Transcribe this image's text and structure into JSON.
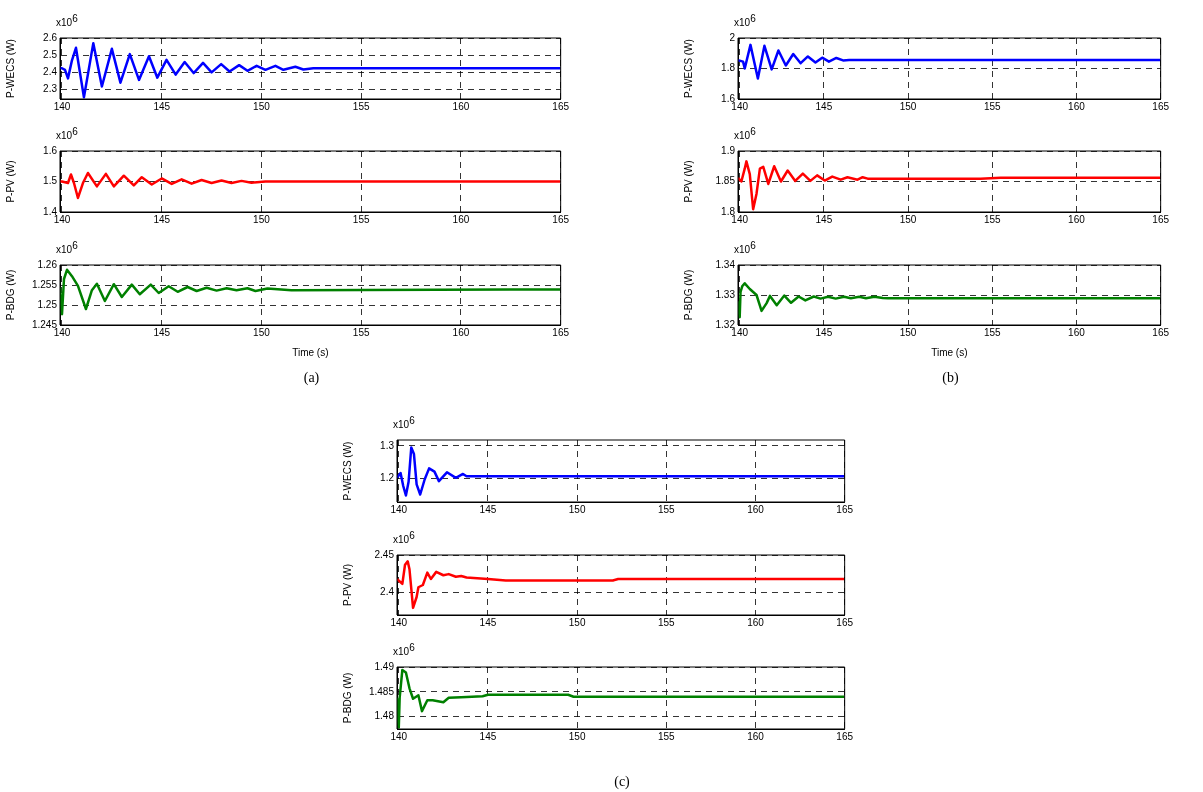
{
  "chart_data": [
    {
      "type": "line",
      "ylabel": "P-WECS (W)",
      "annotations": [
        "x10$^{6}$"
      ],
      "xlim": [
        139.9,
        165
      ],
      "xticks": [
        140,
        145,
        150,
        155,
        160,
        165
      ],
      "ylim": [
        2.245,
        2.6
      ],
      "yticks": [
        2.3,
        2.4,
        2.5,
        2.6
      ],
      "grid": true,
      "color": "#0000ff",
      "x": [
        139.9,
        140.0,
        140.15,
        140.3,
        140.5,
        140.7,
        141.1,
        141.57,
        142.0,
        142.5,
        142.93,
        143.4,
        143.86,
        144.36,
        144.78,
        145.24,
        145.7,
        146.15,
        146.6,
        147.07,
        147.5,
        147.98,
        148.4,
        148.88,
        149.3,
        149.76,
        150.2,
        150.7,
        151.1,
        151.7,
        152.1,
        152.6,
        165
      ],
      "values": [
        2.425,
        2.424,
        2.415,
        2.365,
        2.47,
        2.543,
        2.255,
        2.57,
        2.318,
        2.537,
        2.34,
        2.506,
        2.356,
        2.494,
        2.369,
        2.473,
        2.387,
        2.46,
        2.396,
        2.455,
        2.4,
        2.448,
        2.405,
        2.442,
        2.409,
        2.438,
        2.415,
        2.438,
        2.415,
        2.433,
        2.417,
        2.424,
        2.424
      ]
    },
    {
      "type": "line",
      "ylabel": "P-PV (W)",
      "annotations": [
        "x10$^{6}$"
      ],
      "xlim": [
        139.9,
        165
      ],
      "xticks": [
        140,
        145,
        150,
        155,
        160,
        165
      ],
      "ylim": [
        1.4,
        1.6
      ],
      "yticks": [
        1.4,
        1.5,
        1.6
      ],
      "grid": true,
      "color": "#ff0000",
      "x": [
        139.9,
        140.0,
        140.3,
        140.45,
        140.6,
        140.8,
        141.05,
        141.3,
        141.75,
        142.2,
        142.6,
        143.1,
        143.6,
        144.0,
        144.5,
        145.0,
        145.5,
        146.0,
        146.5,
        147.0,
        147.5,
        148.0,
        148.5,
        149.0,
        149.5,
        150.2,
        165
      ],
      "values": [
        1.5,
        1.5,
        1.495,
        1.523,
        1.495,
        1.446,
        1.495,
        1.528,
        1.484,
        1.525,
        1.484,
        1.519,
        1.487,
        1.514,
        1.49,
        1.51,
        1.492,
        1.507,
        1.493,
        1.505,
        1.495,
        1.503,
        1.495,
        1.502,
        1.496,
        1.5,
        1.5
      ]
    },
    {
      "type": "line",
      "ylabel": "P-BDG (W)",
      "xlabel": "Time (s)",
      "annotations": [
        "x10$^{6}$",
        "(a)"
      ],
      "xlim": [
        139.9,
        165
      ],
      "xticks": [
        140,
        145,
        150,
        155,
        160,
        165
      ],
      "ylim": [
        1.245,
        1.26
      ],
      "yticks": [
        1.245,
        1.25,
        1.255,
        1.26
      ],
      "grid": true,
      "color": "#008000",
      "x": [
        139.9,
        140.0,
        140.1,
        140.25,
        140.5,
        140.8,
        141.2,
        141.5,
        141.75,
        142.15,
        142.6,
        143.0,
        143.5,
        143.9,
        144.45,
        144.85,
        145.35,
        145.8,
        146.3,
        146.75,
        147.25,
        147.75,
        148.25,
        148.75,
        149.3,
        149.7,
        150.3,
        151.5,
        165
      ],
      "values": [
        1.2544,
        1.2477,
        1.2565,
        1.2588,
        1.2572,
        1.2548,
        1.249,
        1.2537,
        1.2553,
        1.251,
        1.2552,
        1.252,
        1.2551,
        1.2527,
        1.2551,
        1.253,
        1.2547,
        1.2533,
        1.2545,
        1.2535,
        1.2543,
        1.2536,
        1.2542,
        1.2537,
        1.2542,
        1.2535,
        1.2541,
        1.2537,
        1.2539
      ]
    },
    {
      "type": "line",
      "ylabel": "P-WECS (W)",
      "annotations": [
        "x10$^{6}$"
      ],
      "xlim": [
        139.9,
        165
      ],
      "xticks": [
        140,
        145,
        150,
        155,
        160,
        165
      ],
      "ylim": [
        1.6,
        2
      ],
      "yticks": [
        1.6,
        1.8,
        2
      ],
      "grid": true,
      "color": "#0000ff",
      "x": [
        139.9,
        140.2,
        140.3,
        140.64,
        141.08,
        141.47,
        141.9,
        142.3,
        142.74,
        143.18,
        143.62,
        144.05,
        144.5,
        144.9,
        145.3,
        145.74,
        146.14,
        146.5,
        165
      ],
      "values": [
        1.855,
        1.845,
        1.8,
        1.955,
        1.735,
        1.949,
        1.794,
        1.918,
        1.82,
        1.895,
        1.835,
        1.879,
        1.839,
        1.871,
        1.845,
        1.869,
        1.853,
        1.855,
        1.855
      ]
    },
    {
      "type": "line",
      "ylabel": "P-PV (W)",
      "annotations": [
        "x10$^{6}$"
      ],
      "xlim": [
        139.9,
        165
      ],
      "xticks": [
        140,
        145,
        150,
        155,
        160,
        165
      ],
      "ylim": [
        1.8,
        1.9
      ],
      "yticks": [
        1.8,
        1.85,
        1.9
      ],
      "grid": true,
      "color": "#ff0000",
      "x": [
        139.9,
        140.1,
        140.3,
        140.4,
        140.6,
        140.8,
        141.0,
        141.2,
        141.4,
        141.7,
        142.05,
        142.45,
        142.85,
        143.3,
        143.75,
        144.2,
        144.6,
        145.05,
        145.5,
        146.0,
        146.4,
        147.0,
        147.3,
        147.6,
        154.3,
        155.5,
        165
      ],
      "values": [
        1.856,
        1.85,
        1.871,
        1.883,
        1.862,
        1.8045,
        1.83,
        1.871,
        1.874,
        1.846,
        1.875,
        1.85,
        1.868,
        1.851,
        1.863,
        1.851,
        1.86,
        1.8515,
        1.858,
        1.853,
        1.857,
        1.853,
        1.857,
        1.8547,
        1.8547,
        1.856,
        1.856
      ]
    },
    {
      "type": "line",
      "ylabel": "P-BDG (W)",
      "xlabel": "Time (s)",
      "annotations": [
        "x10$^{6}$",
        "(b)"
      ],
      "xlim": [
        139.9,
        165
      ],
      "xticks": [
        140,
        145,
        150,
        155,
        160,
        165
      ],
      "ylim": [
        1.32,
        1.34
      ],
      "yticks": [
        1.32,
        1.33,
        1.34
      ],
      "grid": true,
      "color": "#008000",
      "x": [
        139.9,
        140.0,
        140.05,
        140.15,
        140.3,
        140.6,
        141.0,
        141.3,
        141.6,
        141.8,
        142.2,
        142.65,
        143.05,
        143.5,
        143.9,
        144.4,
        144.8,
        145.25,
        145.7,
        146.2,
        146.6,
        147.1,
        147.5,
        148.0,
        148.5,
        148.8,
        165
      ],
      "values": [
        1.3279,
        1.3226,
        1.331,
        1.3329,
        1.3339,
        1.332,
        1.33,
        1.3247,
        1.3273,
        1.3297,
        1.3266,
        1.3298,
        1.3274,
        1.3295,
        1.3282,
        1.3295,
        1.3288,
        1.3294,
        1.3288,
        1.3294,
        1.3289,
        1.3294,
        1.3289,
        1.3294,
        1.329,
        1.3289,
        1.3289
      ]
    },
    {
      "type": "line",
      "ylabel": "P-WECS (W)",
      "annotations": [
        "x10$^{6}$"
      ],
      "xlim": [
        139.9,
        165
      ],
      "xticks": [
        140,
        145,
        150,
        155,
        160,
        165
      ],
      "ylim": [
        1.128,
        1.318
      ],
      "yticks": [
        1.2,
        1.3
      ],
      "grid": true,
      "color": "#0000ff",
      "x": [
        139.9,
        140.1,
        140.25,
        140.4,
        140.55,
        140.7,
        140.85,
        141.0,
        141.2,
        141.45,
        141.7,
        142.0,
        142.25,
        142.7,
        143.2,
        143.6,
        143.8,
        165
      ],
      "values": [
        1.202,
        1.217,
        1.177,
        1.148,
        1.19,
        1.295,
        1.275,
        1.182,
        1.151,
        1.197,
        1.231,
        1.221,
        1.192,
        1.219,
        1.202,
        1.214,
        1.207,
        1.207
      ]
    },
    {
      "type": "line",
      "ylabel": "P-PV (W)",
      "annotations": [
        "x10$^{6}$"
      ],
      "xlim": [
        139.9,
        165
      ],
      "xticks": [
        140,
        145,
        150,
        155,
        160,
        165
      ],
      "ylim": [
        2.37,
        2.45
      ],
      "yticks": [
        2.4,
        2.45
      ],
      "grid": true,
      "color": "#ff0000",
      "x": [
        139.9,
        140.2,
        140.35,
        140.5,
        140.6,
        140.8,
        141.0,
        141.1,
        141.35,
        141.6,
        141.8,
        142.1,
        142.5,
        142.8,
        143.2,
        143.5,
        143.8,
        145.0,
        146.0,
        152.0,
        152.3,
        165
      ],
      "values": [
        2.418,
        2.4115,
        2.437,
        2.4415,
        2.431,
        2.3795,
        2.394,
        2.407,
        2.41,
        2.4265,
        2.418,
        2.4275,
        2.423,
        2.4245,
        2.421,
        2.422,
        2.42,
        2.418,
        2.416,
        2.416,
        2.418,
        2.418
      ]
    },
    {
      "type": "line",
      "ylabel": "P-BDG (W)",
      "annotations": [
        "x10$^{6}$",
        "(c)"
      ],
      "xlim": [
        139.9,
        165
      ],
      "xticks": [
        140,
        145,
        150,
        155,
        160,
        165
      ],
      "ylim": [
        1.4775,
        1.49
      ],
      "yticks": [
        1.48,
        1.485,
        1.49
      ],
      "grid": true,
      "color": "#008000",
      "x": [
        139.9,
        140.0,
        140.05,
        140.2,
        140.4,
        140.6,
        140.8,
        141.1,
        141.3,
        141.6,
        141.9,
        142.5,
        142.8,
        143.5,
        144.7,
        145.0,
        149.5,
        149.8,
        165
      ],
      "values": [
        1.4838,
        1.4778,
        1.4838,
        1.4894,
        1.4889,
        1.4857,
        1.4836,
        1.4843,
        1.4811,
        1.4833,
        1.4833,
        1.4829,
        1.4838,
        1.4839,
        1.4841,
        1.4844,
        1.4844,
        1.484,
        1.484
      ]
    }
  ]
}
